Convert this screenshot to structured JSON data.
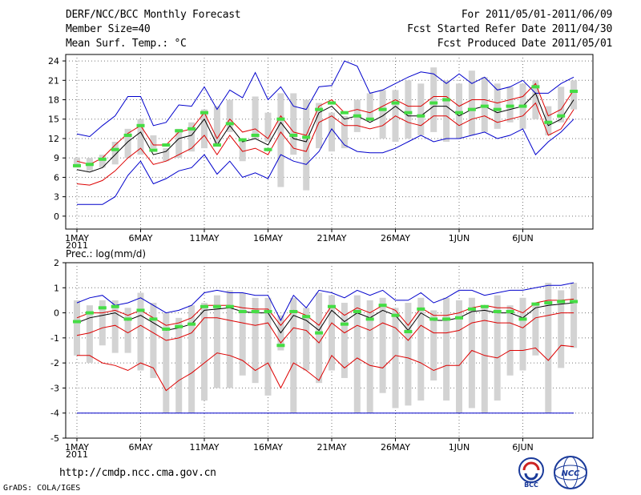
{
  "header": {
    "title": "DERF/NCC/BCC Monthly Forecast",
    "member_size": "Member Size=40",
    "variable": "Mean Surf. Temp.: °C",
    "period": "For 2011/05/01-2011/06/09",
    "started": "Fcst Started Refer Date 2011/04/30",
    "produced": "Fcst Produced Date 2011/05/01"
  },
  "footer": {
    "url": "http://cmdp.ncc.cma.gov.cn",
    "grads": "GrADS: COLA/IGES",
    "logo_bcc": "BCC",
    "logo_ncc": "NCC"
  },
  "colors": {
    "box": "#d3d3d3",
    "median": "#44dd44",
    "mean": "#000000",
    "spread": "#dd0000",
    "extreme": "#0000cc"
  },
  "chart_data": [
    {
      "type": "line",
      "title": "Mean Surf. Temp.: °C",
      "x_tick_labels": [
        "1MAY",
        "6MAY",
        "11MAY",
        "16MAY",
        "21MAY",
        "26MAY",
        "1JUN",
        "6JUN"
      ],
      "x_year_label": "2011",
      "days": 40,
      "ylim": [
        -2,
        25
      ],
      "y_ticks": [
        0,
        3,
        6,
        9,
        12,
        15,
        18,
        21,
        24
      ],
      "grid": true,
      "box_low": [
        7.5,
        7,
        7.5,
        8,
        9,
        9.5,
        10.5,
        8.5,
        9,
        10,
        10.5,
        11,
        13,
        8.5,
        12,
        11.5,
        4.5,
        9.5,
        4,
        10.5,
        10,
        10.5,
        13,
        15,
        12,
        11.5,
        12,
        12.5,
        13,
        11.5,
        12,
        12.5,
        13,
        13.5,
        14.5,
        13.5,
        15,
        12.5,
        14.5,
        16.5
      ],
      "box_high": [
        9,
        9,
        9.5,
        11.5,
        13.5,
        15,
        12.5,
        10.5,
        13.5,
        14.5,
        16.5,
        17,
        18,
        11.5,
        18.5,
        16,
        19,
        19,
        18,
        17.5,
        16,
        15.5,
        18,
        19,
        19.5,
        19.5,
        21,
        20.5,
        23,
        21,
        20.5,
        22.5,
        21.5,
        20.5,
        20,
        20.5,
        21,
        17,
        20,
        21
      ],
      "median": [
        7.8,
        8,
        8.8,
        10.3,
        12.5,
        14,
        10.2,
        11,
        13.2,
        13.5,
        16,
        11,
        14.3,
        11.8,
        12.5,
        10.3,
        15,
        12.5,
        12.2,
        16.5,
        17.5,
        16,
        15.5,
        15,
        16.5,
        17.5,
        16,
        15.5,
        17.5,
        18,
        16,
        16.5,
        17,
        16.5,
        17,
        17,
        20,
        14.5,
        15.5,
        19.3
      ],
      "mean": [
        7.2,
        6.8,
        7.5,
        9.5,
        11.5,
        13,
        9.5,
        10,
        12,
        12.5,
        15,
        11,
        14,
        11.5,
        12,
        11,
        14.5,
        12,
        11.5,
        16,
        17,
        15,
        15.5,
        14.5,
        15.5,
        17,
        15.5,
        15.5,
        17,
        17,
        15.5,
        16.5,
        17,
        16,
        16.5,
        17,
        19,
        14,
        15,
        18
      ],
      "spread_high": [
        8.5,
        8,
        9,
        11,
        12.8,
        14,
        11,
        11,
        13,
        13.5,
        16,
        12,
        15,
        13,
        13.5,
        12,
        15.5,
        13,
        12.5,
        17,
        18,
        16,
        16.5,
        16,
        17,
        18,
        17,
        17,
        18.5,
        18.5,
        17,
        18,
        18,
        17.5,
        18,
        18.5,
        20.5,
        15.5,
        16.5,
        19.5
      ],
      "spread_low": [
        5,
        4.8,
        5.5,
        7,
        9,
        10.5,
        8,
        8.5,
        9.5,
        10.5,
        12.5,
        9.5,
        12.5,
        10,
        10.5,
        9.5,
        13,
        10.5,
        10,
        14.5,
        15.5,
        14,
        14,
        13.5,
        14,
        15.5,
        14.5,
        14,
        15.5,
        15.5,
        14,
        15,
        15.5,
        14.5,
        15,
        15.5,
        17.5,
        12.5,
        13.5,
        16.5
      ],
      "max": [
        12.7,
        12.3,
        14,
        15.5,
        18.5,
        18.5,
        14,
        14.5,
        17.2,
        17,
        20,
        16.5,
        19.5,
        18.3,
        22.2,
        18,
        20,
        17,
        16.5,
        20,
        20.2,
        24,
        23.2,
        19,
        19.5,
        20.5,
        21.5,
        22.3,
        22,
        20.5,
        22,
        20.5,
        21.5,
        19.5,
        20,
        21,
        19,
        19,
        20.5,
        21.5
      ],
      "min": [
        1.8,
        1.8,
        1.8,
        3,
        6.3,
        8.5,
        5,
        5.8,
        7,
        7.5,
        9.5,
        6.5,
        8.5,
        6,
        6.7,
        5.8,
        9.5,
        8.5,
        8,
        10,
        13.5,
        11,
        10,
        9.8,
        9.8,
        10.5,
        11.5,
        12.5,
        11.5,
        12,
        12,
        12.5,
        13,
        12,
        12.5,
        13.5,
        9.5,
        11.5,
        13,
        15
      ]
    },
    {
      "type": "line",
      "title": "Prec.: log(mm/d)",
      "x_tick_labels": [
        "1MAY",
        "6MAY",
        "11MAY",
        "16MAY",
        "21MAY",
        "26MAY",
        "1JUN",
        "6JUN"
      ],
      "x_year_label": "2011",
      "days": 40,
      "ylim": [
        -5,
        2
      ],
      "y_ticks": [
        -5,
        -4,
        -3,
        -2,
        -1,
        0,
        1,
        2
      ],
      "grid": true,
      "box_low": [
        -1.7,
        -2,
        -1.3,
        -1.6,
        -1.6,
        -2.3,
        -2.6,
        -4,
        -4,
        -4,
        -3.5,
        -3,
        -3,
        -2.5,
        -2.8,
        -3.3,
        -1.5,
        -4,
        -2.3,
        -2.8,
        -2.3,
        -2.6,
        -4,
        -4,
        -3.2,
        -3.8,
        -3.7,
        -3.5,
        -2.7,
        -3.5,
        -4,
        -3.8,
        -4,
        -3.5,
        -2.5,
        -2.3,
        -1.7,
        -4,
        -2.2,
        -1.4
      ],
      "box_high": [
        0.5,
        0.3,
        0.5,
        0.5,
        0.2,
        0.8,
        0.4,
        0,
        -0.2,
        0.3,
        0.4,
        0.7,
        0.9,
        0.8,
        0.6,
        0.6,
        -0.1,
        0.6,
        0.2,
        0.8,
        0.7,
        0.4,
        0.7,
        0.5,
        0.6,
        0.2,
        0.4,
        0.6,
        0.1,
        0.6,
        0.5,
        0.6,
        0.3,
        0.7,
        0.3,
        0.6,
        0.4,
        1.2,
        0.9,
        1.2
      ],
      "median": [
        -0.35,
        0,
        0.2,
        0.25,
        -0.25,
        0.1,
        -0.25,
        -0.65,
        -0.55,
        -0.45,
        0.25,
        0.25,
        0.25,
        0.05,
        0.05,
        0.05,
        -1.3,
        0.05,
        -0.15,
        -0.8,
        0.25,
        -0.45,
        0.05,
        -0.25,
        0.3,
        -0.1,
        -0.75,
        0.15,
        -0.25,
        -0.25,
        -0.2,
        0.15,
        0.25,
        0.05,
        0.05,
        -0.25,
        0.35,
        0.4,
        0.45,
        0.45
      ],
      "mean": [
        -0.4,
        -0.2,
        -0.1,
        0,
        -0.3,
        -0.1,
        -0.4,
        -0.7,
        -0.6,
        -0.45,
        0.1,
        0.15,
        0.2,
        0.05,
        0,
        0,
        -0.8,
        -0.1,
        -0.3,
        -0.7,
        0.1,
        -0.35,
        0,
        -0.2,
        0.1,
        -0.1,
        -0.7,
        0,
        -0.3,
        -0.3,
        -0.2,
        0.05,
        0.1,
        0,
        0,
        -0.2,
        0.2,
        0.3,
        0.35,
        0.4
      ],
      "spread_high": [
        -0.2,
        0,
        0,
        0.1,
        -0.1,
        0.1,
        -0.2,
        -0.5,
        -0.4,
        -0.2,
        0.3,
        0.3,
        0.3,
        0.2,
        0.15,
        0.15,
        -0.5,
        0.1,
        -0.1,
        -0.5,
        0.3,
        -0.1,
        0.2,
        0,
        0.3,
        0.1,
        -0.5,
        0.2,
        -0.1,
        -0.1,
        0,
        0.2,
        0.3,
        0.2,
        0.2,
        0,
        0.4,
        0.5,
        0.5,
        0.55
      ],
      "spread_low": [
        -0.9,
        -0.8,
        -0.6,
        -0.5,
        -0.8,
        -0.5,
        -0.8,
        -1.1,
        -1,
        -0.8,
        -0.2,
        -0.2,
        -0.3,
        -0.4,
        -0.5,
        -0.4,
        -1.2,
        -0.6,
        -0.7,
        -1.2,
        -0.4,
        -0.8,
        -0.5,
        -0.7,
        -0.4,
        -0.6,
        -1.1,
        -0.5,
        -0.8,
        -0.8,
        -0.7,
        -0.4,
        -0.3,
        -0.4,
        -0.4,
        -0.6,
        -0.2,
        -0.1,
        0,
        0
      ],
      "percentile_low": [
        -1.7,
        -1.7,
        -2,
        -2.1,
        -2.3,
        -2,
        -2.2,
        -3.1,
        -2.7,
        -2.4,
        -2,
        -1.6,
        -1.7,
        -1.9,
        -2.3,
        -2,
        -3,
        -2,
        -2.3,
        -2.7,
        -1.7,
        -2.2,
        -1.8,
        -2.1,
        -2.2,
        -1.7,
        -1.8,
        -2,
        -2.3,
        -2.1,
        -2.1,
        -1.5,
        -1.7,
        -1.8,
        -1.5,
        -1.5,
        -1.4,
        -1.9,
        -1.3,
        -1.35
      ],
      "max": [
        0.4,
        0.6,
        0.7,
        0.3,
        0.4,
        0.6,
        0.3,
        0,
        0.1,
        0.3,
        0.8,
        0.9,
        0.8,
        0.8,
        0.7,
        0.7,
        -0.3,
        0.7,
        0.2,
        0.9,
        0.8,
        0.6,
        0.9,
        0.7,
        0.9,
        0.5,
        0.5,
        0.8,
        0.4,
        0.6,
        0.9,
        0.9,
        0.7,
        0.8,
        0.9,
        0.9,
        1,
        1.1,
        1.1,
        1.2
      ],
      "min_line": -4
    }
  ]
}
